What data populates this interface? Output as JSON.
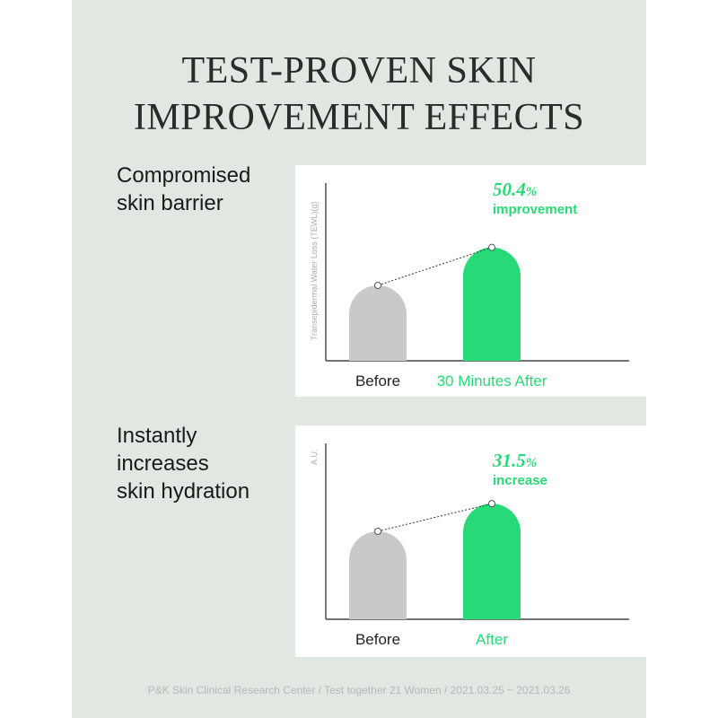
{
  "title": {
    "line1": "TEST-PROVEN SKIN",
    "line2": "IMPROVEMENT EFFECTS"
  },
  "sections": [
    {
      "label_lines": [
        "Compromised",
        "skin barrier"
      ]
    },
    {
      "label_lines": [
        "Instantly",
        "increases",
        "skin hydration"
      ]
    }
  ],
  "footer": "P&K Skin Clinical Research Center / Test together 21 Women / 2021.03.25 ~ 2021.03.26",
  "colors": {
    "accent": "#28d977",
    "before_bar": "#c9c9c9",
    "panel_bg": "#e1e8e2"
  },
  "chart_data": [
    {
      "type": "bar",
      "categories": [
        "Before",
        "30 Minutes After"
      ],
      "values": [
        1.0,
        1.504
      ],
      "ylabel": "Transepidermal Water Loss (TEWL)(g)",
      "annotation": {
        "value": "50.4",
        "unit": "%",
        "text": "improvement"
      }
    },
    {
      "type": "bar",
      "categories": [
        "Before",
        "After"
      ],
      "values": [
        1.0,
        1.315
      ],
      "ylabel": "A.U.",
      "annotation": {
        "value": "31.5",
        "unit": "%",
        "text": "increase"
      }
    }
  ]
}
